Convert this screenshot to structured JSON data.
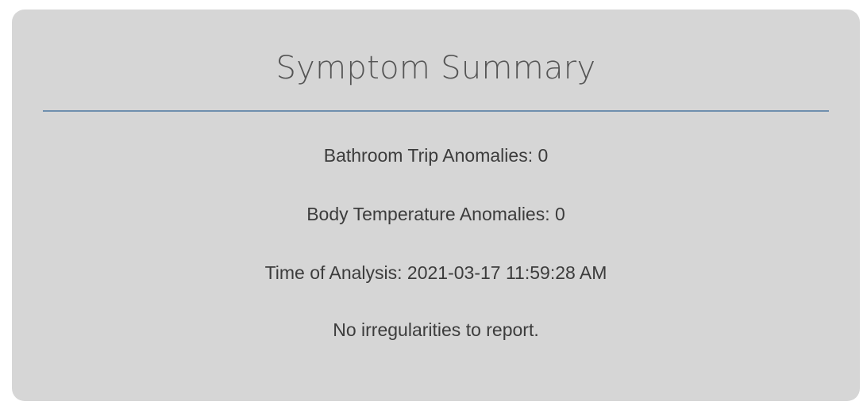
{
  "card": {
    "title": "Symptom Summary",
    "lines": {
      "bathroom_trip_anomalies": "Bathroom Trip Anomalies: 0",
      "body_temperature_anomalies": "Body Temperature Anomalies: 0",
      "time_of_analysis": "Time of Analysis: 2021-03-17 11:59:28 AM",
      "status_message": "No irregularities to report."
    }
  },
  "colors": {
    "card_background": "#d6d6d6",
    "divider": "#6f8fae",
    "title_text": "#555555",
    "body_text": "#3c3c3c"
  }
}
